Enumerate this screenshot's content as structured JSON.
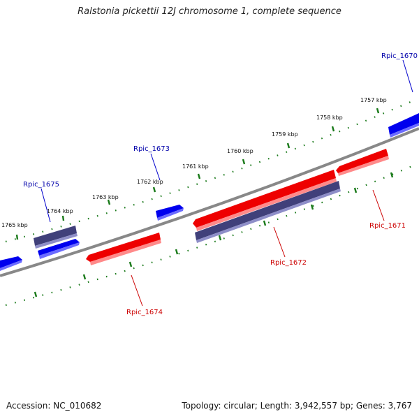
{
  "title": "Ralstonia pickettii 12J chromosome 1, complete sequence",
  "footer": {
    "accession": "Accession: NC_010682",
    "topology": "Topology: circular; Length: 3,942,557 bp; Genes: 3,767"
  },
  "colors": {
    "backbone": "#888888",
    "ticks": "#1a7a1a",
    "forward_gene": "#0000ee",
    "reverse_gene": "#ee0000",
    "other_gene": "#4a4a8c",
    "forward_label": "#0000aa",
    "reverse_label": "#cc0000"
  },
  "kbp_labels": [
    "1757 kbp",
    "1758 kbp",
    "1759 kbp",
    "1760 kbp",
    "1761 kbp",
    "1762 kbp",
    "1763 kbp",
    "1764 kbp",
    "1765 kbp"
  ],
  "gene_labels": [
    "Rpic_1670",
    "Rpic_1671",
    "Rpic_1672",
    "Rpic_1673",
    "Rpic_1674",
    "Rpic_1675"
  ]
}
